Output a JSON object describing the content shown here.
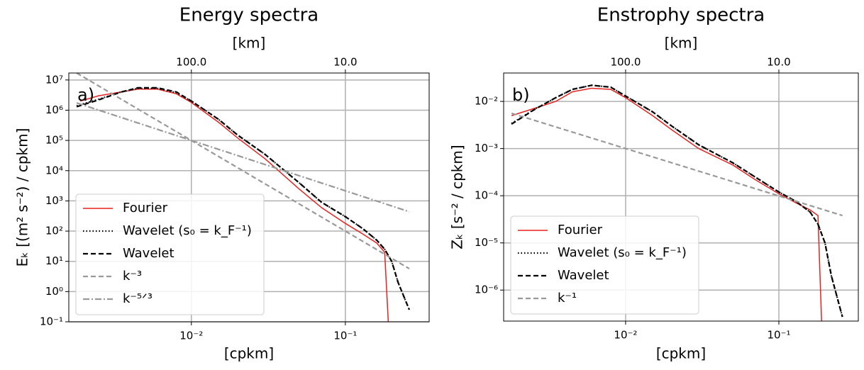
{
  "chart_data": [
    {
      "type": "line",
      "title": "Energy spectra",
      "panel_label": "a)",
      "xlabel": "[cpkm]",
      "ylabel": "Eₖ [(m² s⁻²) / cpkm]",
      "x2label": "[km]",
      "xscale": "log",
      "yscale": "log",
      "grid": true,
      "legend": "lower left",
      "xlim": [
        0.0016,
        0.35
      ],
      "ylim": [
        0.1,
        17000000
      ],
      "xticks": [
        {
          "value": 0.01,
          "label": "10⁻²"
        },
        {
          "value": 0.1,
          "label": "10⁻¹"
        }
      ],
      "x2ticks": [
        {
          "value": 100,
          "label": "100.0"
        },
        {
          "value": 10,
          "label": "10.0"
        }
      ],
      "yticks": [
        {
          "value": 0.1,
          "label": "10⁻¹"
        },
        {
          "value": 1,
          "label": "10⁰"
        },
        {
          "value": 10,
          "label": "10¹"
        },
        {
          "value": 100,
          "label": "10²"
        },
        {
          "value": 1000,
          "label": "10³"
        },
        {
          "value": 10000,
          "label": "10⁴"
        },
        {
          "value": 100000,
          "label": "10⁵"
        },
        {
          "value": 1000000,
          "label": "10⁶"
        },
        {
          "value": 10000000,
          "label": "10⁷"
        }
      ],
      "series": [
        {
          "name": "Fourier",
          "color": "#e8221f",
          "linestyle": "solid",
          "x": [
            0.0019,
            0.0025,
            0.0035,
            0.0045,
            0.006,
            0.008,
            0.01,
            0.015,
            0.02,
            0.03,
            0.05,
            0.07,
            0.1,
            0.13,
            0.16,
            0.18,
            0.19
          ],
          "values": [
            2000000,
            3000000,
            4000000,
            5000000,
            5000000,
            3500000,
            1800000,
            400000,
            120000,
            25000,
            2500,
            600,
            180,
            80,
            40,
            20,
            0.1
          ]
        },
        {
          "name": "Wavelet (s₀ = k_F⁻¹)",
          "color": "#000000",
          "linestyle": "dotted",
          "x": [
            0.0018,
            0.0025,
            0.0035,
            0.0045,
            0.006,
            0.008,
            0.01,
            0.015,
            0.02,
            0.03,
            0.05,
            0.07,
            0.1,
            0.13,
            0.16,
            0.18,
            0.2,
            0.22,
            0.26
          ],
          "values": [
            1400000,
            2300000,
            4000000,
            5300000,
            5300000,
            3800000,
            2000000,
            500000,
            150000,
            35000,
            4000,
            900,
            300,
            120,
            50,
            25,
            10,
            2,
            0.25
          ]
        },
        {
          "name": "Wavelet",
          "color": "#000000",
          "linestyle": "dashed",
          "x": [
            0.0018,
            0.0025,
            0.0035,
            0.0045,
            0.006,
            0.008,
            0.01,
            0.015,
            0.02,
            0.03,
            0.05,
            0.07,
            0.1,
            0.13,
            0.16,
            0.18,
            0.2,
            0.22,
            0.26
          ],
          "values": [
            1300000,
            2200000,
            4000000,
            5500000,
            5500000,
            4000000,
            2000000,
            500000,
            150000,
            35000,
            4000,
            900,
            300,
            120,
            50,
            25,
            10,
            2,
            0.25
          ]
        },
        {
          "name": "k⁻³",
          "color": "#999999",
          "linestyle": "dashed",
          "x": [
            0.0018,
            0.26
          ],
          "values": [
            17000000,
            5.7
          ]
        },
        {
          "name": "k⁻⁵ᐟ³",
          "color": "#999999",
          "linestyle": "dashdot",
          "x": [
            0.0018,
            0.26
          ],
          "values": [
            1740000,
            437
          ]
        }
      ]
    },
    {
      "type": "line",
      "title": "Enstrophy spectra",
      "panel_label": "b)",
      "xlabel": "[cpkm]",
      "ylabel": "Zₖ [s⁻² / cpkm]",
      "x2label": "[km]",
      "xscale": "log",
      "yscale": "log",
      "grid": true,
      "legend": "lower left",
      "xlim": [
        0.0016,
        0.33
      ],
      "ylim": [
        2.2e-07,
        0.04
      ],
      "xticks": [
        {
          "value": 0.01,
          "label": "10⁻²"
        },
        {
          "value": 0.1,
          "label": "10⁻¹"
        }
      ],
      "x2ticks": [
        {
          "value": 100,
          "label": "100.0"
        },
        {
          "value": 10,
          "label": "10.0"
        }
      ],
      "yticks": [
        {
          "value": 1e-06,
          "label": "10⁻⁶"
        },
        {
          "value": 1e-05,
          "label": "10⁻⁵"
        },
        {
          "value": 0.0001,
          "label": "10⁻⁴"
        },
        {
          "value": 0.001,
          "label": "10⁻³"
        },
        {
          "value": 0.01,
          "label": "10⁻²"
        }
      ],
      "series": [
        {
          "name": "Fourier",
          "color": "#e8221f",
          "linestyle": "solid",
          "x": [
            0.0018,
            0.0025,
            0.0035,
            0.0045,
            0.006,
            0.008,
            0.01,
            0.015,
            0.02,
            0.03,
            0.05,
            0.07,
            0.1,
            0.13,
            0.16,
            0.18,
            0.19
          ],
          "values": [
            0.005,
            0.007,
            0.01,
            0.016,
            0.019,
            0.018,
            0.012,
            0.005,
            0.0025,
            0.001,
            0.00045,
            0.00022,
            0.00011,
            7e-05,
            5e-05,
            3.8e-05,
            2.2e-07
          ]
        },
        {
          "name": "Wavelet (s₀ = k_F⁻¹)",
          "color": "#000000",
          "linestyle": "dotted",
          "x": [
            0.0018,
            0.0025,
            0.0035,
            0.0045,
            0.006,
            0.008,
            0.01,
            0.015,
            0.02,
            0.03,
            0.05,
            0.07,
            0.1,
            0.13,
            0.16,
            0.18,
            0.2,
            0.22,
            0.26
          ],
          "values": [
            0.0034,
            0.0066,
            0.012,
            0.018,
            0.022,
            0.02,
            0.013,
            0.006,
            0.003,
            0.0012,
            0.0005,
            0.00025,
            0.00012,
            7.5e-05,
            4.5e-05,
            2.5e-05,
            1e-05,
            2e-06,
            2.7e-07
          ]
        },
        {
          "name": "Wavelet",
          "color": "#000000",
          "linestyle": "dashed",
          "x": [
            0.0018,
            0.0025,
            0.0035,
            0.0045,
            0.006,
            0.008,
            0.01,
            0.015,
            0.02,
            0.03,
            0.05,
            0.07,
            0.1,
            0.13,
            0.16,
            0.18,
            0.2,
            0.22,
            0.26
          ],
          "values": [
            0.0033,
            0.0065,
            0.012,
            0.018,
            0.022,
            0.02,
            0.013,
            0.006,
            0.003,
            0.0012,
            0.0005,
            0.00025,
            0.00012,
            7.5e-05,
            4.5e-05,
            2.5e-05,
            1e-05,
            2e-06,
            2.7e-07
          ]
        },
        {
          "name": "k⁻¹",
          "color": "#999999",
          "linestyle": "dashed",
          "x": [
            0.0018,
            0.26
          ],
          "values": [
            0.0056,
            3.8e-05
          ]
        }
      ]
    }
  ]
}
